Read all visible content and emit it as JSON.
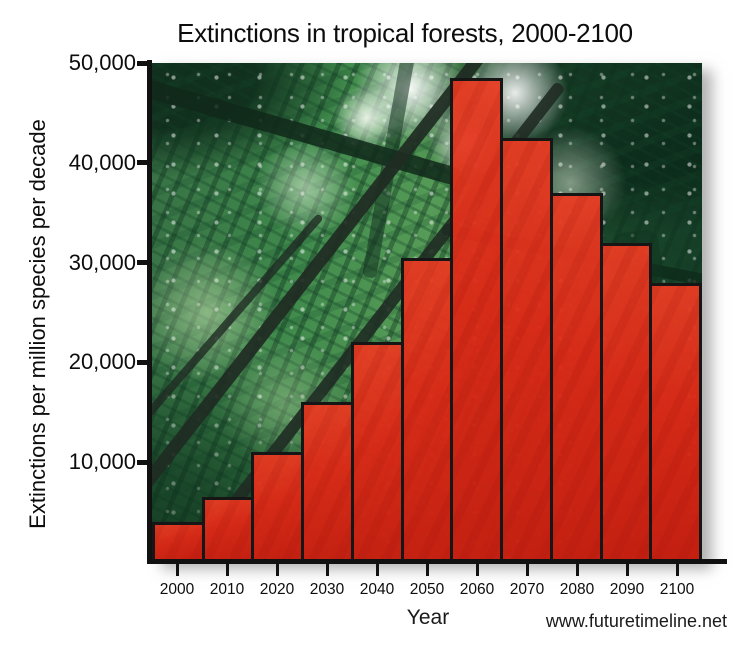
{
  "title": "Extinctions in tropical forests, 2000-2100",
  "y_axis": {
    "label": "Extinctions per million species per decade",
    "tick_values": [
      10000,
      20000,
      30000,
      40000,
      50000
    ],
    "tick_labels": [
      "10,000",
      "20,000",
      "30,000",
      "40,000",
      "50,000"
    ]
  },
  "x_axis": {
    "label": "Year"
  },
  "watermark": "www.futuretimeline.net",
  "colors": {
    "bar_fill": "#e0301b",
    "bar_border": "#161616",
    "axis": "#111111",
    "text": "#0d0d0d",
    "background_theme": "tropical forest greens"
  },
  "chart_data": {
    "type": "bar",
    "title": "Extinctions in tropical forests, 2000-2100",
    "categories": [
      "2000",
      "2010",
      "2020",
      "2030",
      "2040",
      "2050",
      "2060",
      "2070",
      "2080",
      "2090",
      "2100"
    ],
    "values": [
      4000,
      6500,
      11000,
      16000,
      22000,
      30500,
      48500,
      42500,
      37000,
      32000,
      28000
    ],
    "xlabel": "Year",
    "ylabel": "Extinctions per million species per decade",
    "ylim": [
      0,
      50000
    ],
    "ytick_step": 10000,
    "grid": false,
    "legend": false,
    "bar_color": "#e0301b",
    "bar_border_color": "#161616",
    "background": "tropical rainforest photograph behind bars"
  }
}
